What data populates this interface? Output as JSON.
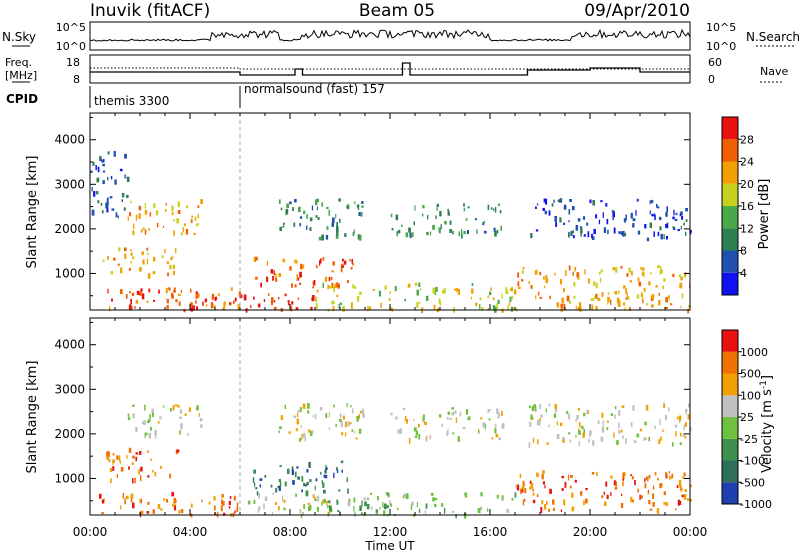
{
  "header": {
    "radar": "Inuvik (fitACF)",
    "beam": "Beam 05",
    "date": "09/Apr/2010"
  },
  "top_panels": {
    "nsky_label": "N.Sky",
    "nsky_ticks": [
      "10^5",
      "10^0"
    ],
    "nsearch_label": "N.Search",
    "nsearch_ticks": [
      "10^5",
      "10^0"
    ],
    "freq_label_1": "Freq.",
    "freq_label_2": "[MHz]",
    "freq_ticks": [
      "18",
      "8"
    ],
    "nave_label": "Nave",
    "nave_ticks": [
      "60",
      "0"
    ],
    "cpid_label": "CPID",
    "cpid_segments": [
      {
        "name": "themis 3300",
        "start_hour": 0
      },
      {
        "name": "normalsound (fast) 157",
        "start_hour": 6
      }
    ]
  },
  "chart_data": [
    {
      "type": "heatmap",
      "title": "",
      "xlabel": "",
      "ylabel": "Slant Range [km]",
      "xlim_hours": [
        0,
        24
      ],
      "ylim_km": [
        180,
        4600
      ],
      "x_tick_hours": [
        0,
        4,
        8,
        12,
        16,
        20,
        24
      ],
      "y_ticks": [
        "1000",
        "2000",
        "3000",
        "4000"
      ],
      "y_tick_values": [
        1000,
        2000,
        3000,
        4000
      ],
      "colorbar": {
        "label": "Power [dB]",
        "ticks": [
          "4",
          "8",
          "12",
          "16",
          "20",
          "24",
          "28"
        ],
        "colors": [
          "#1010f0",
          "#2050b0",
          "#2f7f55",
          "#4aa84a",
          "#c8d020",
          "#f0a000",
          "#f06000",
          "#e81010"
        ]
      },
      "regions": [
        {
          "t0": 0.2,
          "t1": 6.0,
          "r0": 200,
          "r1": 700,
          "level": 6
        },
        {
          "t0": 4.0,
          "t1": 9.0,
          "r0": 200,
          "r1": 600,
          "level": 7
        },
        {
          "t0": 6.5,
          "t1": 10.5,
          "r0": 700,
          "r1": 1400,
          "level": 6
        },
        {
          "t0": 1.5,
          "t1": 4.5,
          "r0": 1900,
          "r1": 2700,
          "level": 5
        },
        {
          "t0": 0.5,
          "t1": 3.5,
          "r0": 1000,
          "r1": 1600,
          "level": 5
        },
        {
          "t0": 12.0,
          "t1": 16.5,
          "r0": 1900,
          "r1": 2600,
          "level": 2
        },
        {
          "t0": 17.0,
          "t1": 24.0,
          "r0": 200,
          "r1": 1200,
          "level": 5
        },
        {
          "t0": 9.0,
          "t1": 17.0,
          "r0": 200,
          "r1": 800,
          "level": 4
        },
        {
          "t0": 7.5,
          "t1": 11.0,
          "r0": 1800,
          "r1": 2700,
          "level": 2
        },
        {
          "t0": 17.5,
          "t1": 24.0,
          "r0": 1800,
          "r1": 2700,
          "level": 1
        },
        {
          "t0": 0.0,
          "t1": 1.5,
          "r0": 2300,
          "r1": 3800,
          "level": 1
        }
      ]
    },
    {
      "type": "heatmap",
      "title": "",
      "xlabel": "Time UT",
      "ylabel": "Slant Range [km]",
      "xlim_hours": [
        0,
        24
      ],
      "ylim_km": [
        180,
        4600
      ],
      "x_tick_hours": [
        0,
        4,
        8,
        12,
        16,
        20,
        24
      ],
      "x_ticks": [
        "00:00",
        "04:00",
        "08:00",
        "12:00",
        "16:00",
        "20:00",
        "00:00"
      ],
      "y_ticks": [
        "1000",
        "2000",
        "3000",
        "4000"
      ],
      "y_tick_values": [
        1000,
        2000,
        3000,
        4000
      ],
      "colorbar": {
        "label": "Velocity [m s",
        "label_sup": "-1",
        "label_close": "]",
        "ticks": [
          "1000",
          "500",
          "100",
          "25",
          "-25",
          "-100",
          "-500",
          "-1000"
        ],
        "colors": [
          "#2040b0",
          "#2f6e5a",
          "#3f9050",
          "#70c040",
          "#c0c0c0",
          "#f0a000",
          "#f07000",
          "#e81010"
        ]
      },
      "regions": [
        {
          "t0": 0.2,
          "t1": 6.0,
          "r0": 200,
          "r1": 700,
          "level": 6
        },
        {
          "t0": 0.5,
          "t1": 3.5,
          "r0": 1000,
          "r1": 1700,
          "level": 6
        },
        {
          "t0": 1.5,
          "t1": 4.5,
          "r0": 2000,
          "r1": 2700,
          "level": 4
        },
        {
          "t0": 6.5,
          "t1": 10.5,
          "r0": 700,
          "r1": 1400,
          "level": 1
        },
        {
          "t0": 6.0,
          "t1": 10.0,
          "r0": 200,
          "r1": 700,
          "level": 4
        },
        {
          "t0": 12.0,
          "t1": 16.5,
          "r0": 1900,
          "r1": 2600,
          "level": 4
        },
        {
          "t0": 17.0,
          "t1": 24.0,
          "r0": 300,
          "r1": 1200,
          "level": 6
        },
        {
          "t0": 9.0,
          "t1": 17.0,
          "r0": 200,
          "r1": 700,
          "level": 3
        },
        {
          "t0": 7.5,
          "t1": 11.0,
          "r0": 1900,
          "r1": 2700,
          "level": 4
        },
        {
          "t0": 17.5,
          "t1": 24.0,
          "r0": 1800,
          "r1": 2700,
          "level": 4
        }
      ]
    }
  ]
}
